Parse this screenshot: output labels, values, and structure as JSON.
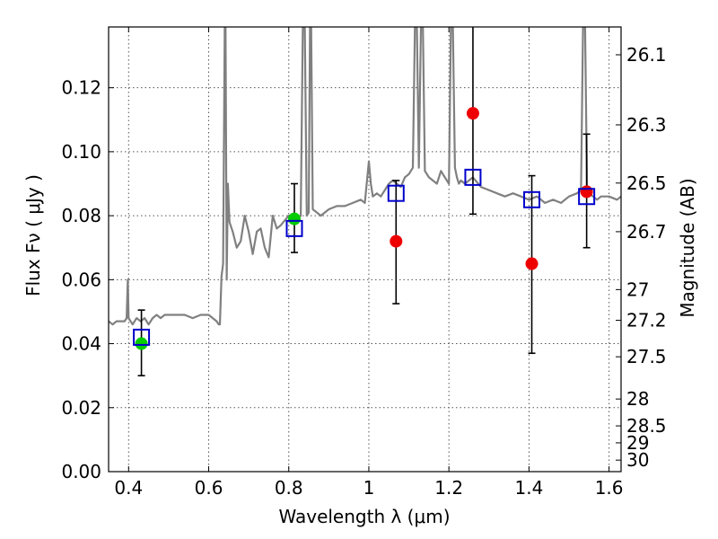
{
  "chart_data": {
    "type": "scatter",
    "xlabel": "Wavelength  λ (μm)",
    "ylabel": "Flux  Fν  ( μJy )",
    "ylabel_right": "Magnitude (AB)",
    "xlim": [
      0.35,
      1.63
    ],
    "ylim": [
      0.0,
      0.139
    ],
    "grid": true,
    "x_ticks": [
      0.4,
      0.6,
      0.8,
      1.0,
      1.2,
      1.4,
      1.6
    ],
    "x_tick_labels": [
      "0.4",
      "0.6",
      "0.8",
      "1",
      "1.2",
      "1.4",
      "1.6"
    ],
    "y_ticks": [
      0.0,
      0.02,
      0.04,
      0.06,
      0.08,
      0.1,
      0.12
    ],
    "y_tick_labels": [
      "0.00",
      "0.02",
      "0.04",
      "0.06",
      "0.08",
      "0.10",
      "0.12"
    ],
    "right_ticks": [
      {
        "label": "26.1",
        "flux": 0.1303
      },
      {
        "label": "26.3",
        "flux": 0.1084
      },
      {
        "label": "26.5",
        "flux": 0.0902
      },
      {
        "label": "26.7",
        "flux": 0.075
      },
      {
        "label": "27",
        "flux": 0.0569
      },
      {
        "label": "27.2",
        "flux": 0.0473
      },
      {
        "label": "27.5",
        "flux": 0.0359
      },
      {
        "label": "28",
        "flux": 0.0227
      },
      {
        "label": "28.5",
        "flux": 0.0143
      },
      {
        "label": "29",
        "flux": 0.009
      },
      {
        "label": "30",
        "flux": 0.0036
      }
    ],
    "series": [
      {
        "kind": "line",
        "color": "#808080",
        "x": [
          0.35,
          0.36,
          0.37,
          0.38,
          0.39,
          0.395,
          0.398,
          0.4,
          0.41,
          0.42,
          0.43,
          0.44,
          0.45,
          0.46,
          0.47,
          0.48,
          0.49,
          0.5,
          0.52,
          0.54,
          0.56,
          0.58,
          0.6,
          0.62,
          0.625,
          0.628,
          0.632,
          0.636,
          0.64,
          0.642,
          0.645,
          0.648,
          0.652,
          0.66,
          0.67,
          0.68,
          0.69,
          0.7,
          0.71,
          0.72,
          0.73,
          0.74,
          0.75,
          0.76,
          0.77,
          0.78,
          0.8,
          0.81,
          0.82,
          0.83,
          0.835,
          0.84,
          0.845,
          0.85,
          0.853,
          0.856,
          0.86,
          0.87,
          0.88,
          0.9,
          0.92,
          0.94,
          0.96,
          0.98,
          0.99,
          1.0,
          1.005,
          1.01,
          1.02,
          1.03,
          1.04,
          1.05,
          1.06,
          1.07,
          1.08,
          1.09,
          1.1,
          1.11,
          1.115,
          1.12,
          1.125,
          1.13,
          1.135,
          1.14,
          1.15,
          1.16,
          1.17,
          1.18,
          1.19,
          1.2,
          1.205,
          1.21,
          1.215,
          1.22,
          1.225,
          1.23,
          1.24,
          1.26,
          1.28,
          1.3,
          1.32,
          1.34,
          1.36,
          1.38,
          1.4,
          1.42,
          1.44,
          1.46,
          1.48,
          1.5,
          1.52,
          1.53,
          1.535,
          1.54,
          1.545,
          1.55,
          1.56,
          1.57,
          1.58,
          1.6,
          1.62,
          1.63
        ],
        "y": [
          0.047,
          0.046,
          0.047,
          0.047,
          0.047,
          0.048,
          0.06,
          0.048,
          0.046,
          0.048,
          0.047,
          0.048,
          0.046,
          0.048,
          0.049,
          0.048,
          0.049,
          0.049,
          0.049,
          0.049,
          0.048,
          0.049,
          0.049,
          0.047,
          0.046,
          0.046,
          0.061,
          0.065,
          0.139,
          0.139,
          0.06,
          0.09,
          0.078,
          0.075,
          0.07,
          0.072,
          0.08,
          0.075,
          0.068,
          0.075,
          0.076,
          0.07,
          0.067,
          0.08,
          0.076,
          0.077,
          0.08,
          0.08,
          0.079,
          0.08,
          0.139,
          0.139,
          0.08,
          0.081,
          0.139,
          0.139,
          0.082,
          0.081,
          0.08,
          0.082,
          0.083,
          0.083,
          0.084,
          0.085,
          0.084,
          0.097,
          0.09,
          0.086,
          0.087,
          0.086,
          0.088,
          0.09,
          0.091,
          0.09,
          0.089,
          0.092,
          0.093,
          0.095,
          0.139,
          0.139,
          0.095,
          0.139,
          0.139,
          0.094,
          0.092,
          0.091,
          0.09,
          0.094,
          0.092,
          0.09,
          0.139,
          0.139,
          0.095,
          0.092,
          0.09,
          0.091,
          0.09,
          0.092,
          0.089,
          0.088,
          0.087,
          0.086,
          0.087,
          0.086,
          0.085,
          0.086,
          0.084,
          0.085,
          0.084,
          0.086,
          0.087,
          0.088,
          0.139,
          0.139,
          0.088,
          0.087,
          0.086,
          0.085,
          0.086,
          0.086,
          0.085,
          0.086
        ]
      },
      {
        "kind": "points",
        "marker": "square",
        "color": "#0000cc",
        "x": [
          0.432,
          0.814,
          1.068,
          1.26,
          1.407,
          1.544
        ],
        "y": [
          0.042,
          0.076,
          0.087,
          0.092,
          0.085,
          0.086
        ]
      },
      {
        "kind": "points",
        "marker": "circle",
        "color": "#00cc00",
        "x": [
          0.432,
          0.814
        ],
        "y": [
          0.04,
          0.079
        ]
      },
      {
        "kind": "points",
        "marker": "circle",
        "color": "#ee0000",
        "x": [
          1.068,
          1.26,
          1.407,
          1.544
        ],
        "y": [
          0.072,
          0.112,
          0.065,
          0.0875
        ]
      },
      {
        "kind": "errorbars",
        "color": "#000000",
        "x": [
          0.432,
          0.814,
          1.068,
          1.26,
          1.407,
          1.544
        ],
        "y_low": [
          0.03,
          0.0685,
          0.0525,
          0.0805,
          0.037,
          0.07
        ],
        "y_high": [
          0.0505,
          0.09,
          0.091,
          0.14,
          0.0925,
          0.1055
        ]
      }
    ]
  }
}
